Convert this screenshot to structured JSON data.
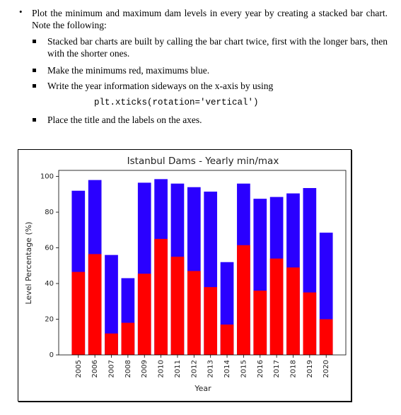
{
  "document": {
    "items": [
      {
        "text": "Plot the minimum and maximum dam levels in every year by creating a stacked bar chart. Note the following:",
        "subitems": [
          "Stacked bar charts are built by calling the bar chart twice, first with the longer bars, then with the shorter ones.",
          "Make the minimums red, maximums blue.",
          "Write the year information sideways on the x-axis by using",
          "Place the title and the labels on the axes."
        ]
      }
    ],
    "code": "plt.xticks(rotation='vertical')"
  },
  "chart_data": {
    "type": "bar",
    "title": "Istanbul Dams - Yearly min/max",
    "x_label": "Year",
    "y_label": "Level Percentage (%)",
    "categories": [
      "2005",
      "2006",
      "2007",
      "2008",
      "2009",
      "2010",
      "2011",
      "2012",
      "2013",
      "2014",
      "2015",
      "2016",
      "2017",
      "2018",
      "2019",
      "2020"
    ],
    "series": [
      {
        "color": "#2a00ff",
        "values": [
          92,
          98,
          56,
          43,
          96.5,
          98.5,
          96,
          94,
          91.5,
          52,
          96,
          87.5,
          88.5,
          90.5,
          93.5,
          68.5
        ]
      },
      {
        "color": "#ff0000",
        "values": [
          46.5,
          56.5,
          12,
          18,
          45.5,
          65,
          55,
          47,
          38,
          17,
          61.5,
          36,
          54,
          49,
          35,
          20
        ]
      }
    ],
    "ylim": [
      0,
      103.4
    ],
    "yticks": [
      0,
      20,
      40,
      60,
      80,
      100
    ]
  }
}
